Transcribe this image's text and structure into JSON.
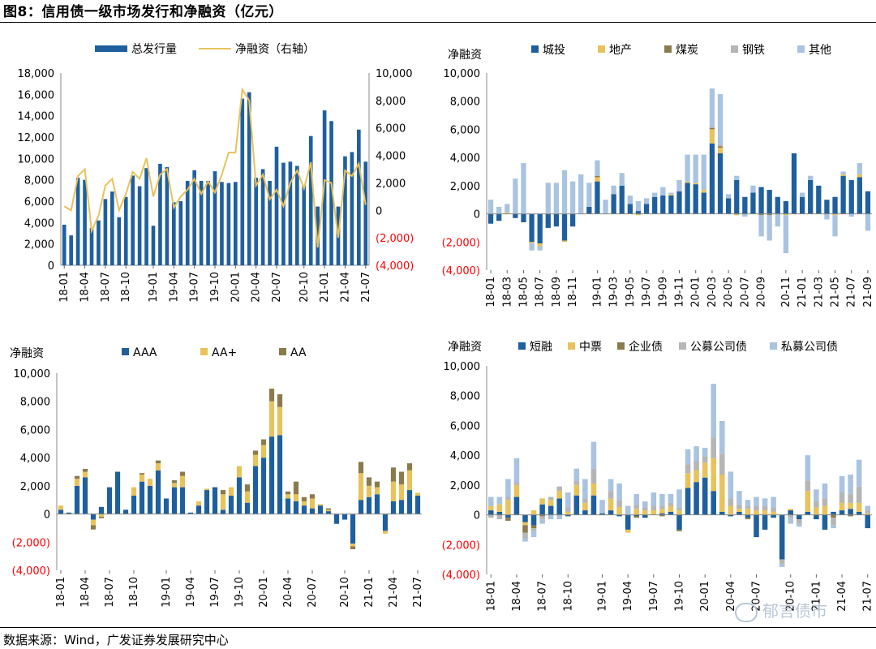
{
  "figure": {
    "title": "图8：信用债一级市场发行和净融资（亿元）",
    "source": "数据来源：Wind，广发证券发展研究中心",
    "watermark": "郁言债市"
  },
  "colors": {
    "blue": "#1f5f9e",
    "gold": "#e8c25b",
    "olive": "#8a7a4d",
    "gray": "#b5b5b5",
    "lightblue": "#a9c3e0",
    "negative_label": "#ff0000"
  },
  "chart_data": [
    {
      "type": "bar+line",
      "title": "",
      "legend": [
        "总发行量",
        "净融资（右轴）"
      ],
      "x_tick_labels": [
        "18-01",
        "18-04",
        "18-07",
        "18-10",
        "19-01",
        "19-04",
        "19-07",
        "19-10",
        "20-01",
        "20-04",
        "20-07",
        "20-10",
        "21-01",
        "21-04",
        "21-07"
      ],
      "left_axis": {
        "min": 0,
        "max": 18000,
        "step": 2000,
        "tick_labels": [
          "0",
          "2,000",
          "4,000",
          "6,000",
          "8,000",
          "10,000",
          "12,000",
          "14,000",
          "16,000",
          "18,000"
        ]
      },
      "right_axis": {
        "min": -4000,
        "max": 10000,
        "step": 2000,
        "tick_labels": [
          "(4,000)",
          "(2,000)",
          "0",
          "2,000",
          "4,000",
          "6,000",
          "8,000",
          "10,000"
        ]
      },
      "series": [
        {
          "name": "总发行量",
          "kind": "bar",
          "axis": "left",
          "values": [
            3800,
            2800,
            8200,
            8000,
            3500,
            4200,
            6200,
            6900,
            4500,
            6400,
            8400,
            7400,
            9100,
            3700,
            9500,
            9200,
            5900,
            6000,
            7900,
            8900,
            7900,
            7900,
            8800,
            7800,
            7700,
            7800,
            15600,
            16200,
            8200,
            9000,
            7900,
            11100,
            9600,
            9700,
            9300,
            7500,
            12100,
            5500,
            14500,
            13500,
            5500,
            10200,
            10600,
            12700,
            9700
          ]
        },
        {
          "name": "净融资（右轴）",
          "kind": "line",
          "axis": "right",
          "values": [
            300,
            0,
            2500,
            3000,
            -1500,
            -400,
            1800,
            2300,
            0,
            1200,
            2800,
            2300,
            3800,
            1000,
            2600,
            3000,
            200,
            1000,
            1500,
            2300,
            1200,
            2100,
            1300,
            2600,
            4200,
            4200,
            8800,
            8000,
            1800,
            2600,
            800,
            1500,
            300,
            2000,
            2900,
            1600,
            3500,
            -2700,
            2200,
            2000,
            -2000,
            2900,
            2500,
            3400,
            400
          ]
        }
      ]
    },
    {
      "type": "stacked-bar",
      "ylabel": "净融资",
      "legend": [
        "城投",
        "地产",
        "煤炭",
        "钢铁",
        "其他"
      ],
      "x_tick_labels": [
        "18-01",
        "18-03",
        "18-05",
        "18-07",
        "18-09",
        "18-11",
        "19-01",
        "19-03",
        "19-05",
        "19-07",
        "19-09",
        "19-11",
        "20-01",
        "20-03",
        "20-05",
        "20-07",
        "20-09",
        "20-11",
        "21-01",
        "21-03",
        "21-05",
        "21-07",
        "21-09"
      ],
      "y_axis": {
        "min": -4000,
        "max": 10000,
        "step": 2000,
        "tick_labels": [
          "(4,000)",
          "(2,000)",
          "0",
          "2,000",
          "4,000",
          "6,000",
          "8,000",
          "10,000"
        ]
      },
      "series": [
        {
          "name": "城投",
          "values": [
            -700,
            -500,
            0,
            -300,
            -600,
            -2000,
            -2100,
            -1000,
            -900,
            -1900,
            -900,
            0,
            500,
            2300,
            0,
            1400,
            2000,
            700,
            200,
            700,
            1200,
            1300,
            1300,
            1600,
            2200,
            2100,
            1500,
            5000,
            4300,
            1100,
            2400,
            1200,
            1500,
            1900,
            1700,
            1200,
            900,
            4300,
            1200,
            2400,
            2000,
            1000,
            1200,
            2700,
            2400,
            2600,
            1600
          ]
        },
        {
          "name": "地产",
          "values": [
            0,
            0,
            100,
            0,
            0,
            -100,
            -200,
            0,
            0,
            -100,
            0,
            0,
            0,
            300,
            0,
            0,
            0,
            0,
            -100,
            0,
            0,
            0,
            100,
            0,
            100,
            100,
            200,
            1000,
            400,
            0,
            -100,
            0,
            0,
            0,
            0,
            0,
            -100,
            0,
            0,
            0,
            0,
            0,
            -100,
            100,
            0,
            200,
            0
          ]
        },
        {
          "name": "煤炭",
          "values": [
            0,
            0,
            0,
            0,
            0,
            0,
            0,
            0,
            0,
            0,
            0,
            0,
            0,
            100,
            0,
            0,
            0,
            0,
            0,
            0,
            0,
            0,
            0,
            0,
            0,
            0,
            0,
            100,
            100,
            0,
            0,
            0,
            0,
            -100,
            -100,
            0,
            0,
            0,
            0,
            0,
            0,
            0,
            0,
            0,
            0,
            0,
            0
          ]
        },
        {
          "name": "钢铁",
          "values": [
            0,
            0,
            0,
            0,
            0,
            0,
            0,
            0,
            0,
            0,
            0,
            0,
            0,
            0,
            0,
            0,
            0,
            0,
            0,
            0,
            0,
            0,
            0,
            0,
            0,
            0,
            0,
            100,
            100,
            0,
            0,
            0,
            0,
            0,
            0,
            0,
            0,
            0,
            0,
            0,
            0,
            0,
            0,
            0,
            0,
            0,
            0
          ]
        },
        {
          "name": "其他",
          "values": [
            1000,
            500,
            600,
            2500,
            3600,
            -500,
            -300,
            2200,
            2200,
            3100,
            2300,
            2800,
            1700,
            1100,
            1000,
            600,
            900,
            600,
            700,
            400,
            300,
            600,
            100,
            800,
            1900,
            2000,
            2500,
            2700,
            3600,
            300,
            300,
            -200,
            500,
            -1500,
            -1800,
            -900,
            -2700,
            0,
            300,
            300,
            0,
            -400,
            -1500,
            200,
            -200,
            800,
            -1200
          ]
        }
      ]
    },
    {
      "type": "stacked-bar",
      "ylabel": "净融资",
      "legend": [
        "AAA",
        "AA+",
        "AA"
      ],
      "x_tick_labels": [
        "18-01",
        "18-04",
        "18-07",
        "18-10",
        "19-01",
        "19-04",
        "19-07",
        "19-10",
        "20-01",
        "20-04",
        "20-07",
        "20-10",
        "21-01",
        "21-04",
        "21-07"
      ],
      "y_axis": {
        "min": -4000,
        "max": 10000,
        "step": 2000,
        "tick_labels": [
          "(4,000)",
          "(2,000)",
          "0",
          "2,000",
          "4,000",
          "6,000",
          "8,000",
          "10,000"
        ]
      },
      "series": [
        {
          "name": "AAA",
          "values": [
            300,
            100,
            2000,
            2600,
            -400,
            500,
            1900,
            3000,
            300,
            1300,
            2300,
            2000,
            3100,
            1100,
            1900,
            1900,
            100,
            600,
            1700,
            1900,
            300,
            1300,
            2600,
            800,
            3400,
            4000,
            5500,
            5600,
            1100,
            900,
            600,
            400,
            600,
            200,
            -700,
            -400,
            -2100,
            1000,
            1200,
            1400,
            -1200,
            900,
            1000,
            1700,
            1300
          ]
        },
        {
          "name": "AA+",
          "values": [
            300,
            0,
            500,
            400,
            -400,
            -200,
            0,
            0,
            0,
            600,
            500,
            500,
            500,
            0,
            300,
            800,
            0,
            300,
            100,
            0,
            1100,
            600,
            800,
            800,
            800,
            900,
            2500,
            2000,
            300,
            500,
            300,
            700,
            100,
            100,
            0,
            0,
            -200,
            1900,
            800,
            500,
            -200,
            1400,
            1100,
            1400,
            200
          ]
        },
        {
          "name": "AA",
          "values": [
            0,
            0,
            200,
            200,
            -300,
            -100,
            0,
            0,
            0,
            0,
            100,
            0,
            200,
            0,
            200,
            300,
            0,
            0,
            0,
            0,
            300,
            0,
            0,
            500,
            300,
            400,
            900,
            900,
            200,
            900,
            300,
            300,
            0,
            100,
            0,
            0,
            -200,
            800,
            600,
            400,
            0,
            1000,
            900,
            500,
            0
          ]
        }
      ]
    },
    {
      "type": "stacked-bar",
      "ylabel": "净融资",
      "legend": [
        "短融",
        "中票",
        "企业债",
        "公募公司债",
        "私募公司债"
      ],
      "x_tick_labels": [
        "18-01",
        "18-04",
        "18-07",
        "18-10",
        "19-01",
        "19-04",
        "19-07",
        "19-10",
        "20-01",
        "20-04",
        "20-07",
        "20-10",
        "21-01",
        "21-04",
        "21-07"
      ],
      "y_axis": {
        "min": -4000,
        "max": 10000,
        "step": 2000,
        "tick_labels": [
          "(4,000)",
          "(2,000)",
          "0",
          "2,000",
          "4,000",
          "6,000",
          "8,000",
          "10,000"
        ]
      },
      "series": [
        {
          "name": "短融",
          "values": [
            300,
            200,
            -200,
            1200,
            -500,
            -700,
            700,
            600,
            1100,
            -100,
            1300,
            300,
            1300,
            100,
            300,
            -100,
            -1000,
            -100,
            -200,
            0,
            100,
            200,
            -1000,
            1800,
            2200,
            2500,
            1600,
            200,
            -100,
            200,
            -200,
            -1500,
            -1000,
            -200,
            -3000,
            300,
            -300,
            200,
            -300,
            -1000,
            200,
            300,
            400,
            200,
            -900
          ]
        },
        {
          "name": "中票",
          "values": [
            300,
            500,
            1000,
            800,
            -200,
            300,
            400,
            400,
            500,
            200,
            700,
            500,
            800,
            0,
            800,
            500,
            -200,
            400,
            300,
            300,
            300,
            400,
            300,
            1000,
            800,
            1000,
            2200,
            2500,
            600,
            200,
            400,
            300,
            300,
            200,
            0,
            100,
            0,
            1400,
            500,
            600,
            0,
            500,
            400,
            600,
            100
          ]
        },
        {
          "name": "企业债",
          "values": [
            0,
            0,
            -200,
            0,
            -500,
            -200,
            -100,
            0,
            0,
            0,
            0,
            0,
            0,
            0,
            0,
            0,
            0,
            -100,
            0,
            0,
            -100,
            0,
            -100,
            0,
            0,
            0,
            0,
            0,
            0,
            0,
            -100,
            0,
            0,
            0,
            0,
            0,
            0,
            0,
            0,
            0,
            -200,
            0,
            -100,
            0,
            0
          ]
        },
        {
          "name": "公募公司债",
          "values": [
            -200,
            -300,
            200,
            200,
            -400,
            -200,
            -200,
            200,
            300,
            300,
            300,
            300,
            1000,
            0,
            500,
            500,
            0,
            300,
            200,
            300,
            200,
            200,
            200,
            600,
            600,
            400,
            1400,
            1400,
            500,
            300,
            200,
            300,
            300,
            300,
            -300,
            -200,
            -300,
            700,
            400,
            500,
            -500,
            700,
            600,
            1100,
            200
          ]
        },
        {
          "name": "私募公司债",
          "values": [
            600,
            500,
            1200,
            1600,
            -200,
            -400,
            -300,
            -300,
            -300,
            1000,
            800,
            1300,
            1800,
            900,
            800,
            1100,
            600,
            700,
            400,
            900,
            800,
            600,
            1200,
            1000,
            1000,
            600,
            3600,
            2200,
            1800,
            900,
            400,
            600,
            500,
            700,
            -200,
            -400,
            -200,
            1700,
            800,
            1000,
            -200,
            1100,
            1300,
            1800,
            300
          ]
        }
      ]
    }
  ]
}
